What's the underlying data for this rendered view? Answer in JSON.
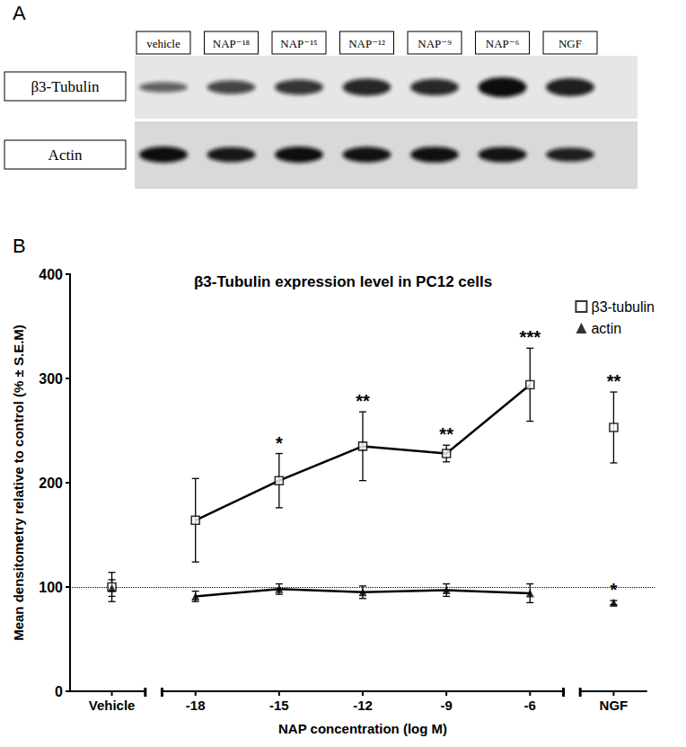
{
  "blot": {
    "label": "A",
    "lanes": [
      "vehicle",
      "NAP⁻¹⁸",
      "NAP⁻¹⁵",
      "NAP⁻¹²",
      "NAP⁻⁹",
      "NAP⁻⁶",
      "NGF"
    ],
    "rows": [
      "β3-Tubulin",
      "Actin"
    ]
  },
  "chart_data": {
    "type": "line",
    "panel_label": "B",
    "title": "β3-Tubulin expression level in PC12 cells",
    "x_label": "NAP concentration (log M)",
    "y_label": "Mean densitometry relative to control (% ± S.E.M)",
    "categories": [
      "Vehicle",
      -18,
      -15,
      -12,
      -9,
      -6,
      "NGF"
    ],
    "series": [
      {
        "name": "β3-tubulin",
        "color": "#000000",
        "marker": "square-open",
        "type": "line",
        "values": [
          100,
          164,
          202,
          235,
          228,
          294,
          253
        ],
        "errors": [
          14,
          40,
          26,
          33,
          8,
          35,
          34
        ],
        "significance": [
          null,
          null,
          "*",
          "**",
          "**",
          "***",
          "**"
        ]
      },
      {
        "name": "actin",
        "color": "#000000",
        "marker": "triangle",
        "type": "line",
        "values": [
          99,
          91,
          98,
          95,
          97,
          94,
          85
        ],
        "errors": [
          8,
          5,
          5,
          6,
          6,
          9,
          2
        ],
        "significance": [
          null,
          null,
          null,
          null,
          null,
          null,
          "*"
        ]
      }
    ],
    "reference_line": 100,
    "ylim": [
      0,
      400
    ],
    "yticks": [
      0,
      100,
      200,
      300,
      400
    ],
    "grid": false,
    "legend": "upper right"
  }
}
